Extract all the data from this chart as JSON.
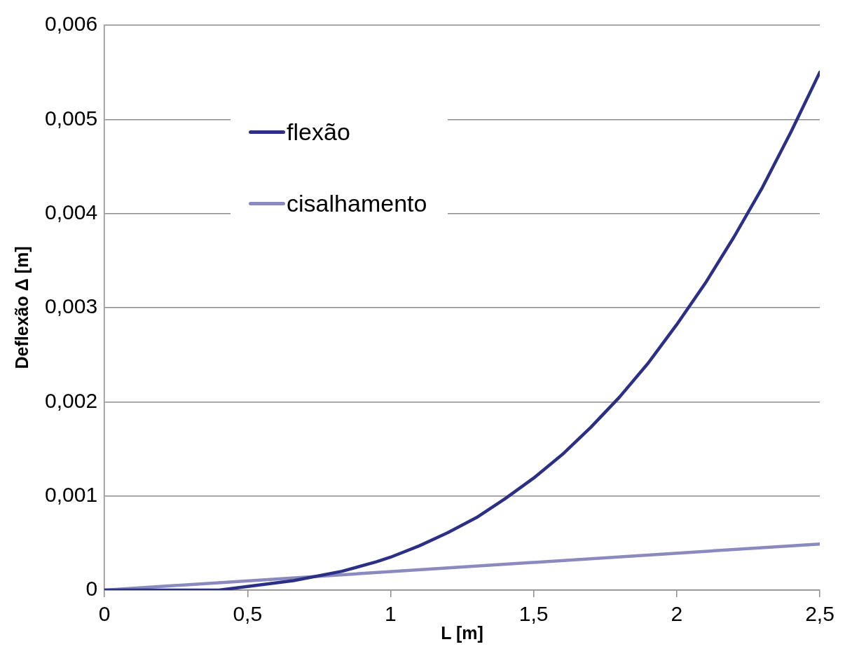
{
  "chart_data": {
    "type": "line",
    "xlabel": "L [m]",
    "ylabel": "Deflexão Δ [m]",
    "xlim": [
      0,
      2.5
    ],
    "xticks": [
      0,
      {
        "value": 0.5,
        "label": "0,5"
      },
      1,
      {
        "value": 1.5,
        "label": "1,5"
      },
      2,
      {
        "value": 2.5,
        "label": "2,5"
      }
    ],
    "ylim": [
      0,
      0.006
    ],
    "yticks": [
      0,
      {
        "value": 0.001,
        "label": "0,001"
      },
      {
        "value": 0.002,
        "label": "0,002"
      },
      {
        "value": 0.003,
        "label": "0,003"
      },
      {
        "value": 0.004,
        "label": "0,004"
      },
      {
        "value": 0.005,
        "label": "0,005"
      },
      {
        "value": 0.006,
        "label": "0,006"
      }
    ],
    "grid": "y",
    "legend": "top left",
    "marker": "none",
    "line_style": "solid",
    "series": [
      {
        "name": "flexão",
        "color": "#2b2f85",
        "x": [
          0,
          0.4,
          0.66,
          0.83,
          0.95,
          1.0,
          1.1,
          1.2,
          1.3,
          1.4,
          1.5,
          1.6,
          1.7,
          1.8,
          1.9,
          2.0,
          2.1,
          2.2,
          2.3,
          2.4,
          2.5
        ],
        "values": [
          0,
          0,
          0.0001,
          0.0002,
          0.0003,
          0.00035,
          0.00047,
          0.00061,
          0.00077,
          0.00097,
          0.00119,
          0.00144,
          0.00173,
          0.00205,
          0.00241,
          0.00282,
          0.00326,
          0.00375,
          0.00428,
          0.00487,
          0.0055
        ]
      },
      {
        "name": "cisalhamento",
        "color": "#8a8abf",
        "x": [
          0,
          2.5
        ],
        "values": [
          0,
          0.00049
        ]
      }
    ]
  }
}
